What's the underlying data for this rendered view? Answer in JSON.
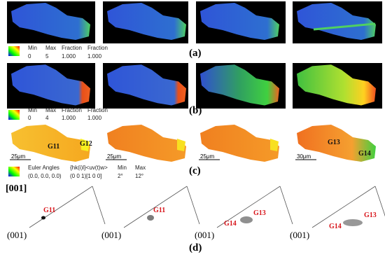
{
  "panels": [
    {
      "label": "(a)",
      "legend": {
        "headers": [
          "Min",
          "Max",
          "Fraction",
          "Fraction"
        ],
        "values": [
          "0",
          "5",
          "1.000",
          "1.000"
        ]
      }
    },
    {
      "label": "(b)",
      "legend": {
        "headers": [
          "Min",
          "Max",
          "Fraction",
          "Fraction"
        ],
        "values": [
          "0",
          "4",
          "1.000",
          "1.000"
        ]
      }
    },
    {
      "label": "(c)",
      "images": [
        {
          "grains": [
            "G11",
            "G12"
          ],
          "scale": "25μm"
        },
        {
          "scale": "25μm"
        },
        {
          "scale": "25μm"
        },
        {
          "grains": [
            "G13",
            "G14"
          ],
          "scale": "30μm"
        }
      ],
      "legend": {
        "headers": [
          "Euler Angles",
          "{hk(i)l}<uv(t)w>",
          "Min",
          "Max"
        ],
        "values": [
          "(0.0, 0.0, 0.0)",
          "(0 0 1)[1 0 0]",
          "2°",
          "12°"
        ]
      }
    },
    {
      "label": "(d)",
      "direction": "[001]",
      "figures": [
        {
          "grains": [
            "G11"
          ],
          "pole": "(001)"
        },
        {
          "grains": [
            "G11"
          ],
          "pole": "(001)"
        },
        {
          "grains": [
            "G13",
            "G14"
          ],
          "pole": "(001)"
        },
        {
          "grains": [
            "G13",
            "G14"
          ],
          "pole": "(001)"
        }
      ]
    }
  ]
}
